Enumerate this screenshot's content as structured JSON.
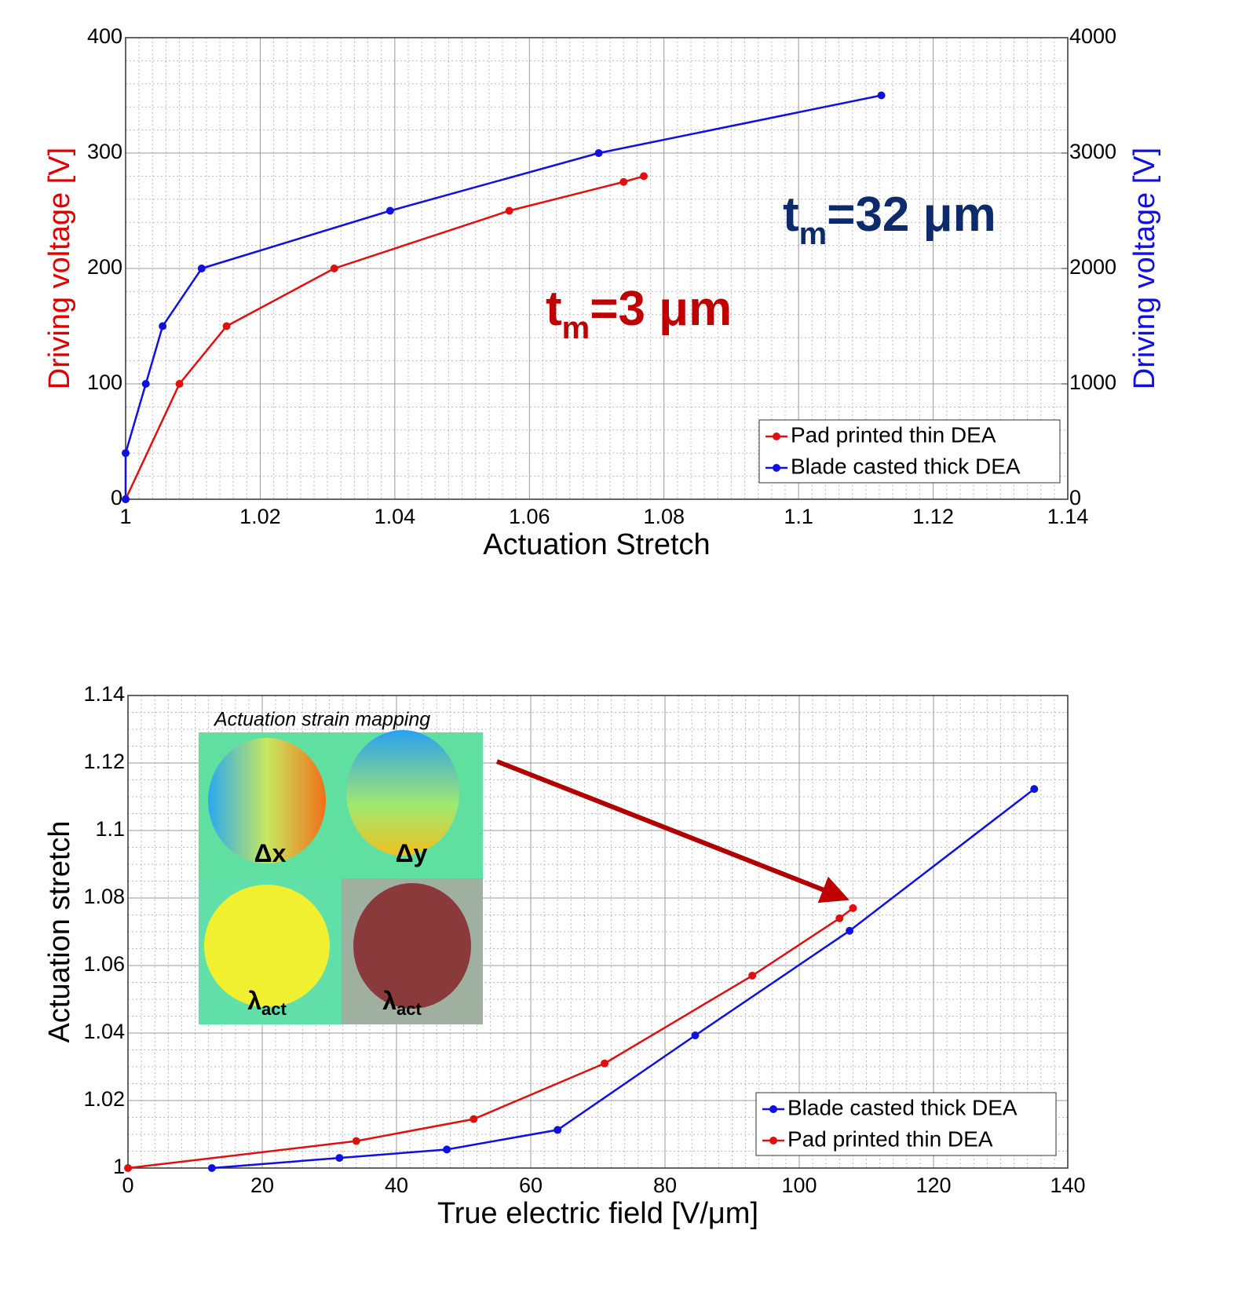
{
  "chart_data": [
    {
      "type": "line",
      "xlabel": "Actuation Stretch",
      "ylabel": "Driving voltage [V]",
      "ylabel_color": "#e00000",
      "y2label": "Driving voltage [V]",
      "y2label_color": "#1010e0",
      "xlim": [
        1,
        1.14
      ],
      "xticks": [
        1,
        1.02,
        1.04,
        1.06,
        1.08,
        1.1,
        1.12,
        1.14
      ],
      "ylim": [
        0,
        400
      ],
      "yticks": [
        0,
        100,
        200,
        300,
        400
      ],
      "y2lim": [
        0,
        4000
      ],
      "y2ticks": [
        0,
        1000,
        2000,
        3000,
        4000
      ],
      "grid": true,
      "legend": "lower right",
      "series": [
        {
          "name": "Pad printed thin DEA",
          "color": "#e01010",
          "x": [
            1,
            1.008,
            1.015,
            1.031,
            1.057,
            1.074,
            1.077
          ],
          "values": [
            0,
            100,
            150,
            200,
            250,
            275,
            280
          ]
        },
        {
          "name": "Blade casted thick DEA",
          "color": "#1010e0",
          "axis": "y2",
          "x": [
            1,
            1,
            1.003,
            1.0055,
            1.0113,
            1.0393,
            1.0703,
            1.1123
          ],
          "values": [
            0,
            400,
            1000,
            1500,
            2000,
            2500,
            3000,
            3500
          ]
        }
      ],
      "annotations": [
        {
          "text": "t",
          "subscript": "m",
          "suffix": "=32 μm",
          "color": "#0d2b6b"
        },
        {
          "text": "t",
          "subscript": "m",
          "suffix": "=3 μm",
          "color": "#c00000"
        }
      ]
    },
    {
      "type": "line",
      "xlabel": "True electric field [V/μm]",
      "ylabel": "Actuation stretch",
      "xlim": [
        0,
        140
      ],
      "xticks": [
        0,
        20,
        40,
        60,
        80,
        100,
        120,
        140
      ],
      "ylim": [
        1,
        1.14
      ],
      "yticks": [
        1,
        1.02,
        1.04,
        1.06,
        1.08,
        1.1,
        1.12,
        1.14
      ],
      "grid": true,
      "legend": "lower right",
      "series": [
        {
          "name": "Blade casted thick DEA",
          "color": "#1010e0",
          "x": [
            12.5,
            31.5,
            47.5,
            64,
            84.5,
            107.5,
            135
          ],
          "values": [
            1,
            1.003,
            1.0055,
            1.0113,
            1.0393,
            1.0703,
            1.1123
          ]
        },
        {
          "name": "Pad printed thin DEA",
          "color": "#e01010",
          "x": [
            0,
            34,
            51.5,
            71,
            93,
            106,
            108
          ],
          "values": [
            1,
            1.008,
            1.0145,
            1.031,
            1.057,
            1.074,
            1.077
          ]
        }
      ],
      "inset_title": "Actuation strain mapping",
      "inset_labels": [
        {
          "text": "Δx"
        },
        {
          "text": "Δy"
        },
        {
          "text": "λ",
          "subscript": "act"
        },
        {
          "text": "λ",
          "subscript": "act"
        }
      ]
    }
  ]
}
